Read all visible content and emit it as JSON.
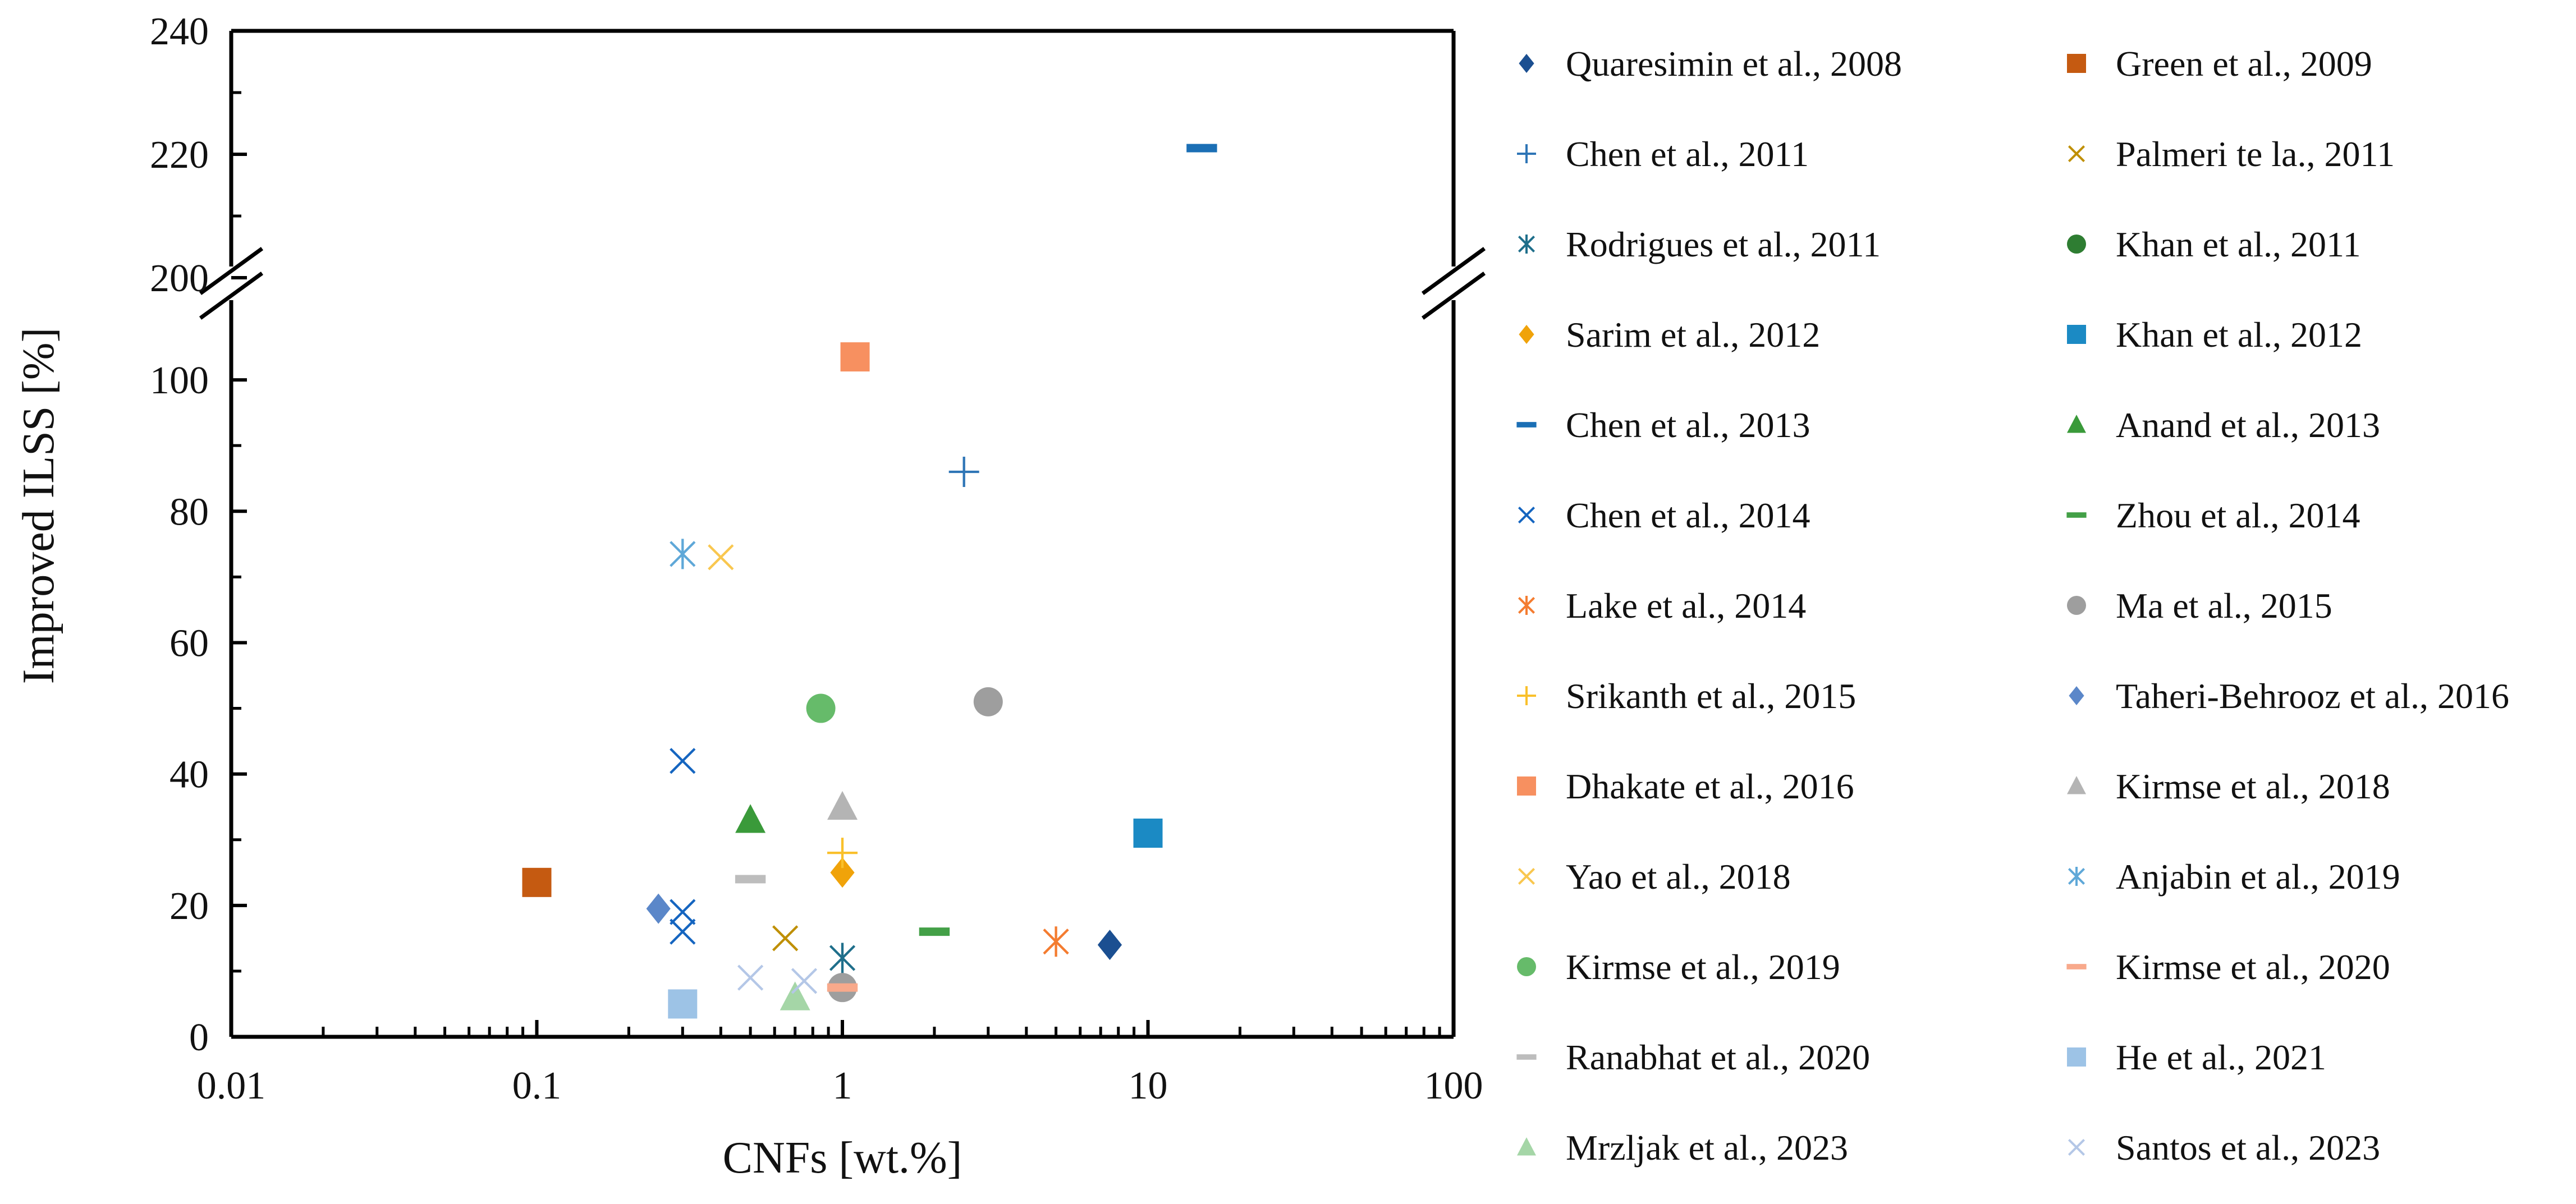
{
  "chart_data": {
    "type": "scatter",
    "xscale": "log",
    "xlim": [
      0.01,
      100
    ],
    "ylim": [
      0,
      240
    ],
    "y_axis_break": [
      110,
      200
    ],
    "grid": false,
    "xlabel": "CNFs [wt.%]",
    "ylabel": "Improved ILSS [%]",
    "x_ticks": [
      0.01,
      0.1,
      1,
      10,
      100
    ],
    "x_tick_labels": [
      "0.01",
      "0.1",
      "1",
      "10",
      "100"
    ],
    "y_ticks": [
      0,
      20,
      40,
      60,
      80,
      100,
      200,
      220,
      240
    ],
    "y_tick_labels": [
      "0",
      "20",
      "40",
      "60",
      "80",
      "100",
      "200",
      "220",
      "240"
    ],
    "legend_position": "right",
    "series": [
      {
        "name": "Quaresimin et al., 2008",
        "marker": "diamond",
        "color": "#1b4f91",
        "points": [
          [
            7.5,
            14
          ]
        ]
      },
      {
        "name": "Green et al., 2009",
        "marker": "square",
        "color": "#c55a11",
        "points": [
          [
            0.1,
            23.5
          ]
        ]
      },
      {
        "name": "Chen et al., 2011",
        "marker": "plus",
        "color": "#2e75b6",
        "points": [
          [
            2.5,
            86
          ]
        ]
      },
      {
        "name": "Palmeri te la., 2011",
        "marker": "x",
        "color": "#bf8f00",
        "points": [
          [
            0.65,
            15
          ]
        ]
      },
      {
        "name": "Rodrigues et al., 2011",
        "marker": "asterisk",
        "color": "#1f6f8b",
        "points": [
          [
            1,
            12
          ]
        ]
      },
      {
        "name": "Khan et al., 2011",
        "marker": "circle",
        "color": "#2e7d32",
        "points": []
      },
      {
        "name": "Sarim et al., 2012",
        "marker": "diamond",
        "color": "#f0a30a",
        "points": [
          [
            1,
            25
          ]
        ]
      },
      {
        "name": "Khan et al., 2012",
        "marker": "square",
        "color": "#1b8ac4",
        "points": [
          [
            10,
            31
          ]
        ]
      },
      {
        "name": "Chen et al., 2013",
        "marker": "dash",
        "color": "#1b6fb5",
        "points": [
          [
            15,
            221
          ]
        ]
      },
      {
        "name": "Anand et al., 2013",
        "marker": "triangle",
        "color": "#3a9a3a",
        "points": [
          [
            0.5,
            33
          ]
        ]
      },
      {
        "name": "Chen et al., 2014",
        "marker": "x",
        "color": "#1565c0",
        "points": [
          [
            0.3,
            42
          ],
          [
            0.3,
            19
          ],
          [
            0.3,
            16
          ]
        ]
      },
      {
        "name": "Zhou et al., 2014",
        "marker": "dash",
        "color": "#43a047",
        "points": [
          [
            2,
            16
          ]
        ]
      },
      {
        "name": "Lake et al., 2014",
        "marker": "asterisk",
        "color": "#f47c30",
        "points": [
          [
            5,
            14.5
          ]
        ]
      },
      {
        "name": "Ma et al., 2015",
        "marker": "circle",
        "color": "#9e9e9e",
        "points": [
          [
            3,
            51
          ],
          [
            1,
            7.5
          ]
        ]
      },
      {
        "name": "Srikanth et al., 2015",
        "marker": "plus",
        "color": "#f9c02b",
        "points": [
          [
            1,
            28
          ]
        ]
      },
      {
        "name": "Taheri-Behrooz et al., 2016",
        "marker": "diamond",
        "color": "#5b87c9",
        "points": [
          [
            0.25,
            19.5
          ]
        ]
      },
      {
        "name": "Dhakate et al., 2016",
        "marker": "square",
        "color": "#f79060",
        "points": [
          [
            1.1,
            103.5
          ]
        ]
      },
      {
        "name": "Kirmse et al., 2018",
        "marker": "triangle",
        "color": "#b4b4b4",
        "points": [
          [
            1,
            35
          ]
        ]
      },
      {
        "name": "Yao et al., 2018",
        "marker": "x",
        "color": "#f9c74f",
        "points": [
          [
            0.4,
            73
          ]
        ]
      },
      {
        "name": "Anjabin et al., 2019",
        "marker": "asterisk",
        "color": "#5fa8d8",
        "points": [
          [
            0.3,
            73.5
          ]
        ]
      },
      {
        "name": "Kirmse et al., 2019",
        "marker": "circle",
        "color": "#66bb6a",
        "points": [
          [
            0.85,
            50
          ]
        ]
      },
      {
        "name": "Kirmse et al., 2020",
        "marker": "dash",
        "color": "#f8a98b",
        "points": [
          [
            1,
            7.5
          ]
        ]
      },
      {
        "name": "Ranabhat et al., 2020",
        "marker": "dash",
        "color": "#bdbdbd",
        "points": [
          [
            0.5,
            24
          ]
        ]
      },
      {
        "name": "He et al., 2021",
        "marker": "square",
        "color": "#9dc3e6",
        "points": [
          [
            0.3,
            5
          ]
        ]
      },
      {
        "name": "Mrzljak et al., 2023",
        "marker": "triangle",
        "color": "#a5d6a7",
        "points": [
          [
            0.7,
            6
          ]
        ]
      },
      {
        "name": "Santos et al., 2023",
        "marker": "x",
        "color": "#b4c7e7",
        "points": [
          [
            0.5,
            9
          ],
          [
            0.75,
            8.5
          ]
        ]
      }
    ]
  }
}
